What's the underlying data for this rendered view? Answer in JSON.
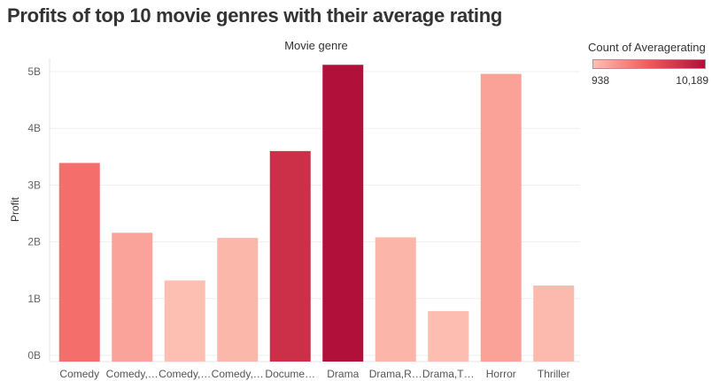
{
  "title": "Profits of top 10 movie genres with their average rating",
  "chart_data": {
    "type": "bar",
    "column_header": "Movie genre",
    "ylabel": "Profit",
    "categories": [
      "Comedy",
      "Comedy,…",
      "Comedy,…",
      "Comedy,…",
      "Docume…",
      "Drama",
      "Drama,R…",
      "Drama,T…",
      "Horror",
      "Thriller"
    ],
    "values": [
      3.39,
      2.16,
      1.32,
      2.07,
      3.6,
      5.12,
      2.08,
      0.78,
      4.96,
      1.23
    ],
    "value_unit": "B",
    "color_values": [
      4600,
      2200,
      938,
      1300,
      8200,
      10189,
      1400,
      1000,
      2300,
      1200
    ],
    "ylim": [
      0,
      5.2
    ],
    "yticks": [
      "0B",
      "1B",
      "2B",
      "3B",
      "4B",
      "5B"
    ],
    "ytick_values": [
      0,
      1,
      2,
      3,
      4,
      5
    ],
    "grid": true,
    "legend": {
      "title": "Count of Averagerating",
      "min_label": "938",
      "max_label": "10,189",
      "min": 938,
      "max": 10189,
      "colors": [
        "#fdbfb2",
        "#f2595a",
        "#b0103a"
      ],
      "placement": "top-right"
    }
  }
}
